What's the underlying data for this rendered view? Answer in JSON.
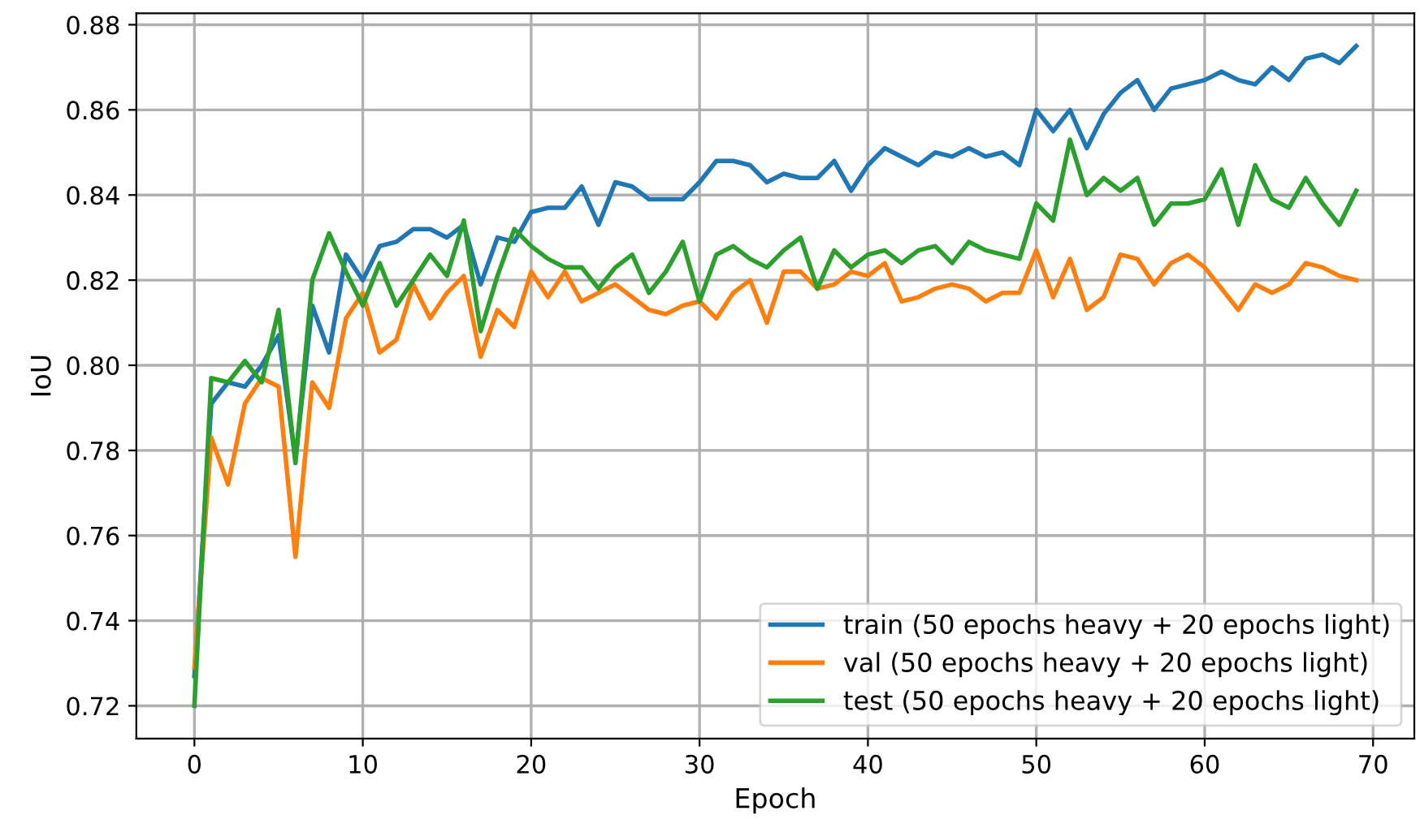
{
  "chart_data": {
    "type": "line",
    "xlabel": "Epoch",
    "ylabel": "IoU",
    "x": [
      0,
      1,
      2,
      3,
      4,
      5,
      6,
      7,
      8,
      9,
      10,
      11,
      12,
      13,
      14,
      15,
      16,
      17,
      18,
      19,
      20,
      21,
      22,
      23,
      24,
      25,
      26,
      27,
      28,
      29,
      30,
      31,
      32,
      33,
      34,
      35,
      36,
      37,
      38,
      39,
      40,
      41,
      42,
      43,
      44,
      45,
      46,
      47,
      48,
      49,
      50,
      51,
      52,
      53,
      54,
      55,
      56,
      57,
      58,
      59,
      60,
      61,
      62,
      63,
      64,
      65,
      66,
      67,
      68,
      69
    ],
    "series": [
      {
        "name": "train (50 epochs heavy + 20 epochs light)",
        "color": "#1f77b4",
        "values": [
          0.727,
          0.791,
          0.796,
          0.795,
          0.8,
          0.807,
          0.778,
          0.814,
          0.803,
          0.826,
          0.82,
          0.828,
          0.829,
          0.832,
          0.832,
          0.83,
          0.833,
          0.819,
          0.83,
          0.829,
          0.836,
          0.837,
          0.837,
          0.842,
          0.833,
          0.843,
          0.842,
          0.839,
          0.839,
          0.839,
          0.843,
          0.848,
          0.848,
          0.847,
          0.843,
          0.845,
          0.844,
          0.844,
          0.848,
          0.841,
          0.847,
          0.851,
          0.849,
          0.847,
          0.85,
          0.849,
          0.851,
          0.849,
          0.85,
          0.847,
          0.86,
          0.855,
          0.86,
          0.851,
          0.859,
          0.864,
          0.867,
          0.86,
          0.865,
          0.866,
          0.867,
          0.869,
          0.867,
          0.866,
          0.87,
          0.867,
          0.872,
          0.873,
          0.871,
          0.875
        ]
      },
      {
        "name": "val (50 epochs heavy + 20 epochs light)",
        "color": "#ff7f0e",
        "values": [
          0.729,
          0.783,
          0.772,
          0.791,
          0.797,
          0.795,
          0.755,
          0.796,
          0.79,
          0.811,
          0.817,
          0.803,
          0.806,
          0.819,
          0.811,
          0.817,
          0.821,
          0.802,
          0.813,
          0.809,
          0.822,
          0.816,
          0.822,
          0.815,
          0.817,
          0.819,
          0.816,
          0.813,
          0.812,
          0.814,
          0.815,
          0.811,
          0.817,
          0.82,
          0.81,
          0.822,
          0.822,
          0.818,
          0.819,
          0.822,
          0.821,
          0.824,
          0.815,
          0.816,
          0.818,
          0.819,
          0.818,
          0.815,
          0.817,
          0.817,
          0.827,
          0.816,
          0.825,
          0.813,
          0.816,
          0.826,
          0.825,
          0.819,
          0.824,
          0.826,
          0.823,
          0.818,
          0.813,
          0.819,
          0.817,
          0.819,
          0.824,
          0.823,
          0.821,
          0.82
        ]
      },
      {
        "name": "test (50 epochs heavy + 20 epochs light)",
        "color": "#2ca02c",
        "values": [
          0.72,
          0.797,
          0.796,
          0.801,
          0.796,
          0.813,
          0.777,
          0.82,
          0.831,
          0.822,
          0.814,
          0.824,
          0.814,
          0.82,
          0.826,
          0.821,
          0.834,
          0.808,
          0.821,
          0.832,
          0.828,
          0.825,
          0.823,
          0.823,
          0.818,
          0.823,
          0.826,
          0.817,
          0.822,
          0.829,
          0.815,
          0.826,
          0.828,
          0.825,
          0.823,
          0.827,
          0.83,
          0.818,
          0.827,
          0.823,
          0.826,
          0.827,
          0.824,
          0.827,
          0.828,
          0.824,
          0.829,
          0.827,
          0.826,
          0.825,
          0.838,
          0.834,
          0.853,
          0.84,
          0.844,
          0.841,
          0.844,
          0.833,
          0.838,
          0.838,
          0.839,
          0.846,
          0.833,
          0.847,
          0.839,
          0.837,
          0.844,
          0.838,
          0.833,
          0.841
        ]
      }
    ],
    "xlim": [
      -3.45,
      72.45
    ],
    "ylim": [
      0.7123,
      0.8827
    ],
    "xticks": [
      0,
      10,
      20,
      30,
      40,
      50,
      60,
      70
    ],
    "yticks": [
      {
        "value": 0.72,
        "label": "0.72"
      },
      {
        "value": 0.74,
        "label": "0.74"
      },
      {
        "value": 0.76,
        "label": "0.76"
      },
      {
        "value": 0.78,
        "label": "0.78"
      },
      {
        "value": 0.8,
        "label": "0.80"
      },
      {
        "value": 0.82,
        "label": "0.82"
      },
      {
        "value": 0.84,
        "label": "0.84"
      },
      {
        "value": 0.86,
        "label": "0.86"
      },
      {
        "value": 0.88,
        "label": "0.88"
      }
    ],
    "grid": true,
    "legend": "bottom right",
    "marker": "none",
    "line_style": "solid"
  }
}
